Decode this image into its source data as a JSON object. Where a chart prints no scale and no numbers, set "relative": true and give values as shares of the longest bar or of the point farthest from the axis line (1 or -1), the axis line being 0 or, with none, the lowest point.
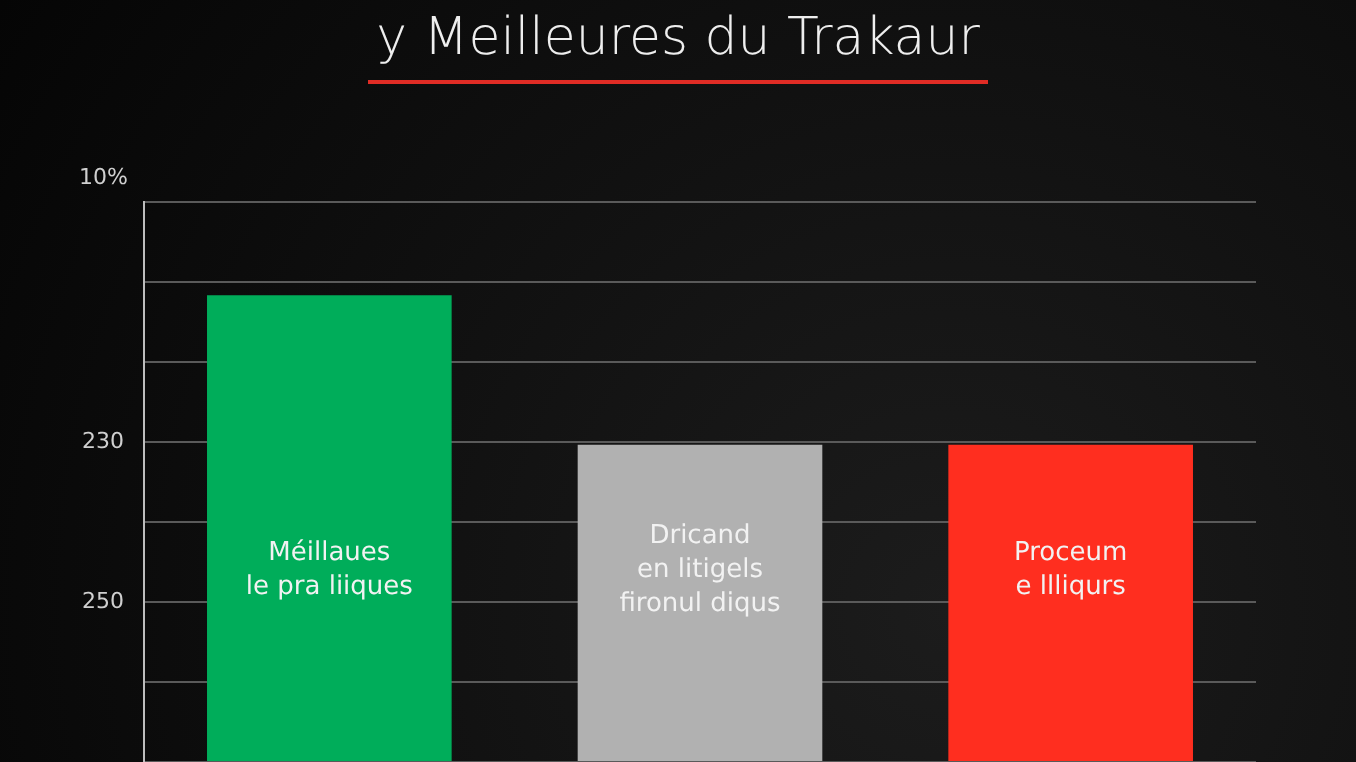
{
  "chart_data": {
    "type": "bar",
    "title": "y Meilleures du Trakaur",
    "relative": true,
    "categories": [
      "Méillaues\nle pra liiques",
      "Dricand\nen litigels\nfironul diqus",
      "Proceum\ne llliqurs"
    ],
    "values": [
      1,
      0.68,
      0.68
    ],
    "colors": [
      "#00ad5a",
      "#b1b1b1",
      "#ff2e1f"
    ],
    "grid": "y",
    "legend": false,
    "annotations": [
      "10%",
      "230",
      "250"
    ]
  }
}
